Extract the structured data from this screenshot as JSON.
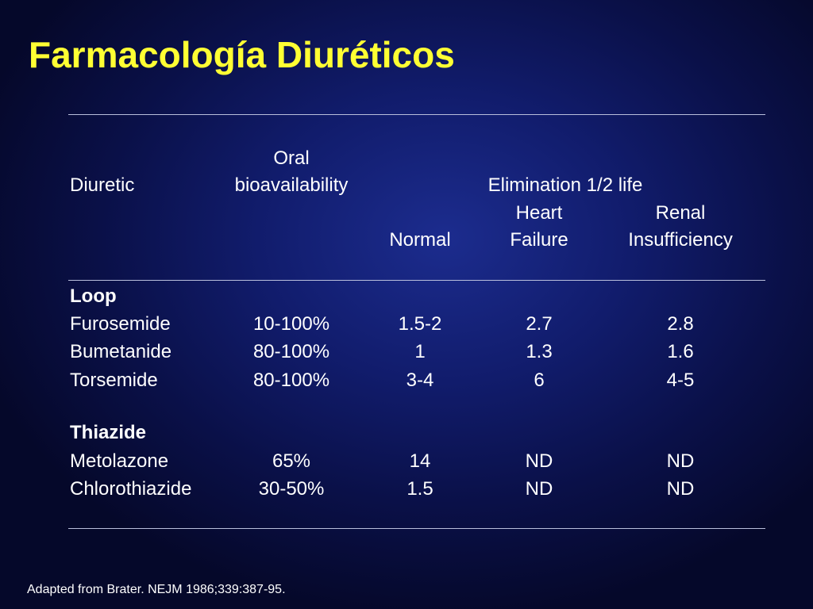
{
  "slide": {
    "title": "Farmacología Diuréticos",
    "footnote": "Adapted from Brater. NEJM 1986;339:387-95."
  },
  "header": {
    "diuretic": "Diuretic",
    "oral": "Oral",
    "bioavailability": "bioavailability",
    "elimination": "Elimination 1/2 life",
    "normal": "Normal",
    "heart": "Heart",
    "failure": "Failure",
    "renal": "Renal",
    "insufficiency": "Insufficiency"
  },
  "groups": [
    {
      "label": "Loop",
      "rows": [
        {
          "name": "Furosemide",
          "bio": "10-100%",
          "normal": "1.5-2",
          "hf": "2.7",
          "ri": "2.8"
        },
        {
          "name": "Bumetanide",
          "bio": "80-100%",
          "normal": "1",
          "hf": "1.3",
          "ri": "1.6"
        },
        {
          "name": "Torsemide",
          "bio": "80-100%",
          "normal": "3-4",
          "hf": "6",
          "ri": "4-5"
        }
      ]
    },
    {
      "label": "Thiazide",
      "rows": [
        {
          "name": "Metolazone",
          "bio": "65%",
          "normal": "14",
          "hf": "ND",
          "ri": "ND"
        },
        {
          "name": "Chlorothiazide",
          "bio": "30-50%",
          "normal": "1.5",
          "hf": "ND",
          "ri": "ND"
        }
      ]
    }
  ]
}
